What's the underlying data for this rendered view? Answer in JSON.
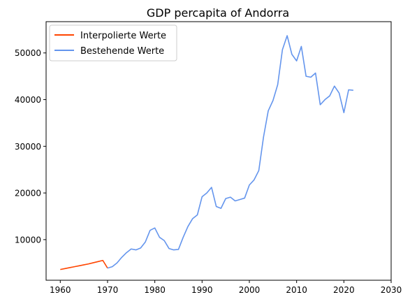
{
  "chart_data": {
    "type": "line",
    "title": "GDP percapita of Andorra",
    "xlabel": "",
    "ylabel": "",
    "xlim": [
      1957,
      2030
    ],
    "ylim": [
      1300,
      56700
    ],
    "x_ticks": [
      1960,
      1970,
      1980,
      1990,
      2000,
      2010,
      2020,
      2030
    ],
    "y_ticks": [
      10000,
      20000,
      30000,
      40000,
      50000
    ],
    "grid": false,
    "legend_position": "top-left",
    "series": [
      {
        "name": "Interpolierte Werte",
        "color": "#ff4500",
        "x": [
          1960,
          1961,
          1962,
          1963,
          1964,
          1965,
          1966,
          1967,
          1968,
          1969,
          1970
        ],
        "y": [
          3600,
          3800,
          4000,
          4200,
          4400,
          4600,
          4800,
          5050,
          5300,
          5550,
          3900
        ]
      },
      {
        "name": "Bestehende Werte",
        "color": "#6495ed",
        "x": [
          1970,
          1971,
          1972,
          1973,
          1974,
          1975,
          1976,
          1977,
          1978,
          1979,
          1980,
          1981,
          1982,
          1983,
          1984,
          1985,
          1986,
          1987,
          1988,
          1989,
          1990,
          1991,
          1992,
          1993,
          1994,
          1995,
          1996,
          1997,
          1998,
          1999,
          2000,
          2001,
          2002,
          2003,
          2004,
          2005,
          2006,
          2007,
          2008,
          2009,
          2010,
          2011,
          2012,
          2013,
          2014,
          2015,
          2016,
          2017,
          2018,
          2019,
          2020,
          2021,
          2022
        ],
        "y": [
          3900,
          4200,
          5000,
          6200,
          7200,
          8000,
          7800,
          8200,
          9500,
          12000,
          12500,
          10500,
          9800,
          8100,
          7800,
          7900,
          10500,
          12800,
          14500,
          15300,
          19200,
          20000,
          21200,
          17100,
          16700,
          18800,
          19100,
          18300,
          18600,
          18900,
          21700,
          22800,
          24800,
          32000,
          37600,
          39800,
          43200,
          50700,
          53700,
          49700,
          48300,
          51400,
          45000,
          44800,
          45700,
          38900,
          40000,
          40800,
          42900,
          41400,
          37200,
          42100,
          42000
        ]
      }
    ]
  }
}
